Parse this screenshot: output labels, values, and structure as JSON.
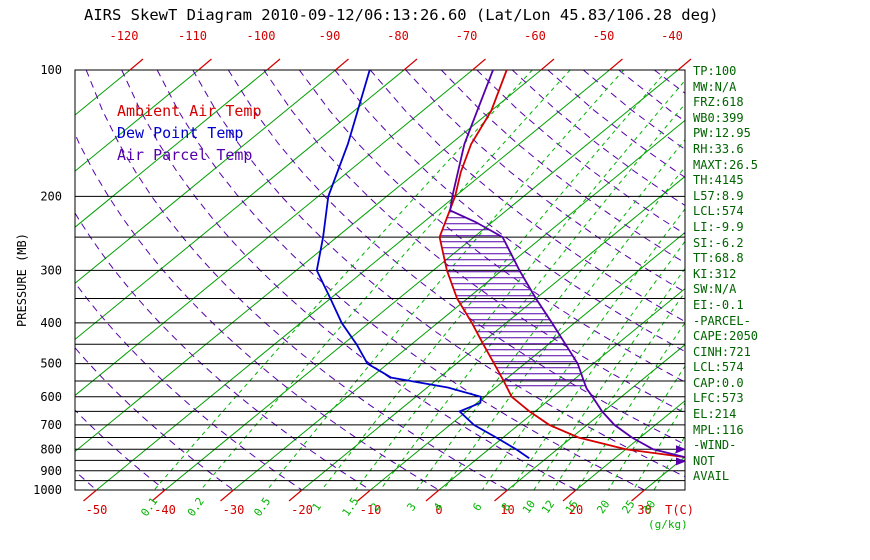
{
  "title": "AIRS SkewT Diagram 2010-09-12/06:13:26.60 (Lat/Lon 45.83/106.28 deg)",
  "colors": {
    "temp": "#d40000",
    "dewpoint": "#0000cd",
    "parcel": "#5500aa",
    "isotherm": "#00a000",
    "mixing": "#00b400",
    "axis": "#000000",
    "stats_text": "#006400"
  },
  "legend": [
    {
      "key": "temp",
      "label": "Ambient Air Temp"
    },
    {
      "key": "dewpoint",
      "label": "Dew Point Temp"
    },
    {
      "key": "parcel",
      "label": "Air Parcel Temp"
    }
  ],
  "stats": [
    "TP:100",
    "MW:N/A",
    "FRZ:618",
    "WB0:399",
    "PW:12.95",
    "RH:33.6",
    "MAXT:26.5",
    "TH:4145",
    "L57:8.9",
    "LCL:574",
    "LI:-9.9",
    "SI:-6.2",
    "TT:68.8",
    "KI:312",
    "SW:N/A",
    "EI:-0.1",
    "-PARCEL-",
    "CAPE:2050",
    "CINH:721",
    "LCL:574",
    "CAP:0.0",
    "LFC:573",
    "EL:214",
    "MPL:116",
    "-WIND-",
    "NOT",
    "AVAIL"
  ],
  "chart_data": {
    "type": "line",
    "variant": "skew-t-log-p",
    "ylabel": "PRESSURE (MB)",
    "xlabel": "T(C)",
    "mixing_unit_label": "(g/kg)",
    "y_axis": {
      "scale": "log",
      "range_mb": [
        100,
        1000
      ]
    },
    "pressure_tick_labels_mb": [
      100,
      200,
      300,
      400,
      500,
      600,
      700,
      800,
      900,
      1000
    ],
    "pressure_lines_mb": [
      100,
      200,
      250,
      300,
      350,
      400,
      450,
      500,
      550,
      600,
      650,
      700,
      750,
      800,
      850,
      900,
      950,
      1000
    ],
    "x_ticks_bottom_C": [
      -50,
      -40,
      -30,
      -20,
      -10,
      0,
      10,
      20,
      30
    ],
    "x_ticks_top_100mb_C": [
      -120,
      -110,
      -100,
      -90,
      -80,
      -70,
      -60,
      -50,
      -40
    ],
    "isotherms_C": {
      "min": -120,
      "max": 30,
      "step": 10
    },
    "dry_adiabats_theta_C": {
      "min": -50,
      "max": 170,
      "step": 10
    },
    "mixing_ratio_lines_g_kg": [
      0.1,
      0.2,
      0.5,
      1,
      1.5,
      2,
      3,
      4,
      6,
      8,
      10,
      12,
      15,
      20,
      25,
      30
    ],
    "series": [
      {
        "key": "temp",
        "name": "Ambient Air Temp",
        "points_p_T": [
          [
            100,
            -65
          ],
          [
            125,
            -60
          ],
          [
            150,
            -57
          ],
          [
            175,
            -53.5
          ],
          [
            200,
            -50
          ],
          [
            250,
            -45
          ],
          [
            300,
            -38
          ],
          [
            350,
            -31.5
          ],
          [
            400,
            -25
          ],
          [
            450,
            -19.5
          ],
          [
            500,
            -14.5
          ],
          [
            550,
            -10
          ],
          [
            600,
            -6
          ],
          [
            650,
            -0.8
          ],
          [
            700,
            4.5
          ],
          [
            750,
            11
          ],
          [
            800,
            20
          ],
          [
            835,
            30
          ]
        ]
      },
      {
        "key": "dewpoint",
        "name": "Dew Point Temp",
        "points_p_T": [
          [
            100,
            -85
          ],
          [
            150,
            -75
          ],
          [
            200,
            -68.5
          ],
          [
            250,
            -62
          ],
          [
            300,
            -57
          ],
          [
            350,
            -50
          ],
          [
            400,
            -44
          ],
          [
            450,
            -38
          ],
          [
            500,
            -33
          ],
          [
            540,
            -27
          ],
          [
            570,
            -17
          ],
          [
            600,
            -10.5
          ],
          [
            620,
            -9.5
          ],
          [
            650,
            -11
          ],
          [
            700,
            -6.5
          ],
          [
            750,
            -1
          ],
          [
            800,
            4
          ],
          [
            840,
            7.5
          ]
        ]
      },
      {
        "key": "parcel",
        "name": "Air Parcel Temp",
        "points_p_T": [
          [
            100,
            -67
          ],
          [
            150,
            -58
          ],
          [
            200,
            -50.4
          ],
          [
            216,
            -48.2
          ],
          [
            230,
            -42.5
          ],
          [
            250,
            -35.8
          ],
          [
            300,
            -27.4
          ],
          [
            350,
            -20
          ],
          [
            400,
            -13.3
          ],
          [
            450,
            -7.5
          ],
          [
            500,
            -2.3
          ],
          [
            550,
            1.7
          ],
          [
            574,
            3.5
          ],
          [
            600,
            5.8
          ],
          [
            650,
            9.8
          ],
          [
            700,
            14
          ],
          [
            750,
            18.8
          ],
          [
            800,
            24
          ],
          [
            835,
            30
          ]
        ]
      }
    ],
    "cape_hatch_region": {
      "pressure_top_mb": 214,
      "pressure_bottom_mb": 573
    },
    "edge_markers_p_mb": [
      800,
      855
    ]
  }
}
